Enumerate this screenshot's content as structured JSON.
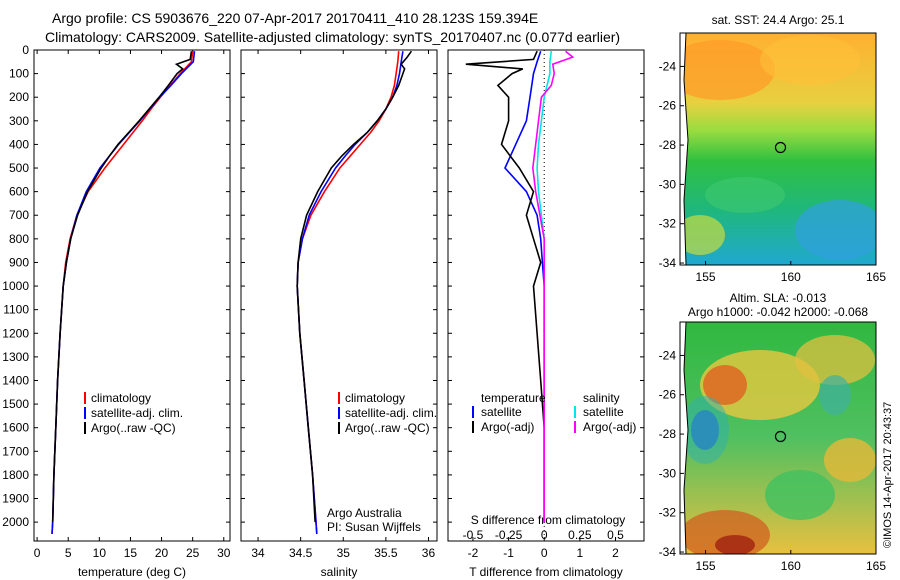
{
  "header": {
    "title_line1": "Argo profile: CS 5903676_220 07-Apr-2017 20170411_410 28.123S 159.394E",
    "title_line2": "Climatology: CARS2009. Satellite-adjusted climatology: synTS_20170407.nc (0.077d earlier)"
  },
  "footer_stamp": "©IMOS 14-Apr-2017 20:43:37",
  "colors": {
    "climatology": "#ff0000",
    "satellite": "#0000ff",
    "argo": "#000000",
    "sal_satellite": "#00e5e5",
    "sal_argo": "#ff00ff"
  },
  "depth_axis": {
    "ticks": [
      "0",
      "100",
      "200",
      "300",
      "400",
      "500",
      "600",
      "700",
      "800",
      "900",
      "1000",
      "1100",
      "1200",
      "1300",
      "1400",
      "1500",
      "1600",
      "1700",
      "1800",
      "1900",
      "2000"
    ],
    "range": [
      0,
      2080
    ]
  },
  "chart_data": [
    {
      "type": "line",
      "name": "temperature-profile",
      "xlabel": "temperature (deg C)",
      "xlim": [
        -0.5,
        31
      ],
      "xticks": [
        "0",
        "5",
        "10",
        "15",
        "20",
        "25",
        "30"
      ],
      "legend": [
        "climatology",
        "satellite-adj. clim.",
        "Argo(..raw -QC)"
      ],
      "series": [
        {
          "name": "climatology",
          "depth": [
            5,
            50,
            100,
            150,
            200,
            250,
            300,
            350,
            400,
            500,
            600,
            700,
            800,
            900,
            1000,
            1200,
            1400,
            1600,
            1800,
            2000,
            2050
          ],
          "values": [
            25.0,
            24.8,
            23.0,
            21.4,
            19.8,
            18.3,
            16.9,
            15.4,
            13.9,
            10.9,
            8.2,
            6.4,
            5.3,
            4.6,
            4.2,
            3.7,
            3.3,
            3.0,
            2.7,
            2.5,
            2.4
          ]
        },
        {
          "name": "satellite-adj. clim.",
          "depth": [
            5,
            50,
            100,
            150,
            200,
            250,
            300,
            350,
            400,
            500,
            600,
            700,
            800,
            900,
            1000,
            1200,
            1400,
            1600,
            1800,
            2000,
            2050
          ],
          "values": [
            25.3,
            25.1,
            23.2,
            21.5,
            19.7,
            18.1,
            16.5,
            14.8,
            13.1,
            10.1,
            7.9,
            6.4,
            5.4,
            4.7,
            4.2,
            3.7,
            3.3,
            3.0,
            2.7,
            2.5,
            2.4
          ]
        },
        {
          "name": "Argo(..raw -QC)",
          "depth": [
            5,
            40,
            60,
            80,
            100,
            150,
            200,
            250,
            300,
            350,
            400,
            450,
            500,
            600,
            700,
            800,
            900,
            1000,
            1200,
            1400,
            1600,
            1800,
            2000
          ],
          "values": [
            24.8,
            24.6,
            22.4,
            23.4,
            22.5,
            21.1,
            19.6,
            18.0,
            16.4,
            14.7,
            13.0,
            11.6,
            10.3,
            8.1,
            6.5,
            5.4,
            4.7,
            4.2,
            3.7,
            3.3,
            3.0,
            2.7,
            2.5
          ]
        }
      ]
    },
    {
      "type": "line",
      "name": "salinity-profile",
      "xlabel": "salinity",
      "xlim": [
        33.8,
        36.1
      ],
      "xticks": [
        "34",
        "34.5",
        "35",
        "35.5",
        "36"
      ],
      "legend": [
        "climatology",
        "satellite-adj. clim.",
        "Argo(..raw -QC)"
      ],
      "annotation": [
        "Argo Australia",
        "PI: Susan Wijffels"
      ],
      "series": [
        {
          "name": "climatology",
          "depth": [
            5,
            50,
            100,
            150,
            200,
            250,
            300,
            350,
            400,
            450,
            500,
            600,
            700,
            800,
            900,
            1000,
            1200,
            1400,
            1600,
            1800,
            2000,
            2050
          ],
          "values": [
            35.65,
            35.64,
            35.62,
            35.6,
            35.56,
            35.5,
            35.42,
            35.32,
            35.2,
            35.08,
            34.96,
            34.78,
            34.62,
            34.52,
            34.47,
            34.46,
            34.49,
            34.54,
            34.59,
            34.64,
            34.68,
            34.69
          ]
        },
        {
          "name": "satellite-adj. clim.",
          "depth": [
            5,
            50,
            100,
            150,
            200,
            250,
            300,
            350,
            400,
            450,
            500,
            600,
            700,
            800,
            900,
            1000,
            1200,
            1400,
            1600,
            1800,
            2000,
            2050
          ],
          "values": [
            35.7,
            35.68,
            35.66,
            35.63,
            35.58,
            35.5,
            35.4,
            35.28,
            35.14,
            35.02,
            34.91,
            34.74,
            34.6,
            34.52,
            34.47,
            34.46,
            34.49,
            34.54,
            34.59,
            34.64,
            34.68,
            34.69
          ]
        },
        {
          "name": "Argo(..raw -QC)",
          "depth": [
            5,
            30,
            60,
            80,
            100,
            150,
            200,
            250,
            300,
            350,
            400,
            450,
            500,
            600,
            700,
            800,
            900,
            1000,
            1200,
            1400,
            1600,
            1800,
            2000
          ],
          "values": [
            35.8,
            35.75,
            35.68,
            35.72,
            35.7,
            35.65,
            35.58,
            35.5,
            35.4,
            35.28,
            35.12,
            34.98,
            34.86,
            34.7,
            34.57,
            34.5,
            34.47,
            34.46,
            34.49,
            34.54,
            34.59,
            34.64,
            34.67
          ]
        }
      ]
    },
    {
      "type": "line",
      "name": "difference-profile",
      "xlabel": "T difference from climatology",
      "xlim": [
        -2.7,
        2.8
      ],
      "xticks": [
        "-2",
        "-1",
        "0",
        "1",
        "2"
      ],
      "x2label": "S difference from climatology",
      "x2ticks": [
        "-0.5",
        "-0.25",
        "0",
        "0.25",
        "0.5"
      ],
      "legend_titles": [
        "temperature",
        "salinity"
      ],
      "legend_temperature": [
        "satellite",
        "Argo(-adj)"
      ],
      "legend_salinity": [
        "satellite",
        "Argo(-adj)"
      ],
      "series": [
        {
          "name": "temperature satellite",
          "depth": [
            5,
            50,
            100,
            200,
            300,
            400,
            500,
            600,
            700,
            800,
            900,
            1000,
            1200,
            1400,
            1600,
            1800,
            2000
          ],
          "values": [
            -0.1,
            -0.2,
            -0.3,
            -0.4,
            -0.5,
            -0.8,
            -1.1,
            -0.5,
            -0.2,
            -0.1,
            -0.05,
            0,
            0,
            0,
            0,
            0,
            0
          ]
        },
        {
          "name": "temperature Argo(-adj)",
          "depth": [
            5,
            40,
            60,
            80,
            100,
            150,
            200,
            300,
            400,
            500,
            600,
            700,
            800,
            900,
            1000,
            1200,
            1400,
            1600,
            1800,
            2000
          ],
          "values": [
            -0.2,
            -0.3,
            -2.2,
            -0.6,
            -0.9,
            -1.3,
            -1.0,
            -1.0,
            -1.2,
            -0.7,
            -0.3,
            -0.5,
            -0.3,
            -0.1,
            -0.3,
            -0.2,
            -0.1,
            0,
            0,
            0
          ]
        },
        {
          "name": "salinity satellite",
          "depth": [
            5,
            50,
            100,
            200,
            300,
            400,
            500,
            600,
            700,
            800,
            900,
            1000,
            1200,
            1400,
            1600,
            1800,
            2000
          ],
          "values": [
            0.05,
            0.04,
            0.04,
            0.0,
            -0.02,
            -0.04,
            -0.05,
            -0.04,
            -0.02,
            0,
            0,
            0,
            0,
            0,
            0,
            0,
            0
          ]
        },
        {
          "name": "salinity Argo(-adj)",
          "depth": [
            5,
            30,
            60,
            100,
            150,
            200,
            300,
            400,
            500,
            600,
            700,
            800,
            900,
            1000,
            1200,
            1400,
            1600,
            1800,
            2000
          ],
          "values": [
            0.15,
            0.2,
            0.06,
            0.07,
            0.05,
            -0.02,
            -0.04,
            -0.06,
            -0.08,
            -0.06,
            -0.03,
            0,
            0,
            0,
            0,
            0,
            0,
            0,
            0
          ]
        }
      ]
    }
  ],
  "maps": [
    {
      "name": "sst-map",
      "title": "sat. SST: 24.4  Argo: 25.1",
      "xticks": [
        "155",
        "160",
        "165"
      ],
      "yticks": [
        "-24",
        "-26",
        "-28",
        "-30",
        "-32",
        "-34"
      ],
      "float_lon": 159.394,
      "float_lat": -28.123,
      "lon_range": [
        153.5,
        165
      ],
      "lat_range": [
        -34.1,
        -22.3
      ]
    },
    {
      "name": "sla-map",
      "title_line1": "Altim. SLA: -0.013",
      "title_line2": "Argo h1000: -0.042  h2000: -0.068",
      "xticks": [
        "155",
        "160",
        "165"
      ],
      "yticks": [
        "-24",
        "-26",
        "-28",
        "-30",
        "-32",
        "-34"
      ],
      "float_lon": 159.394,
      "float_lat": -28.123,
      "lon_range": [
        153.5,
        165
      ],
      "lat_range": [
        -34.1,
        -22.3
      ]
    }
  ]
}
